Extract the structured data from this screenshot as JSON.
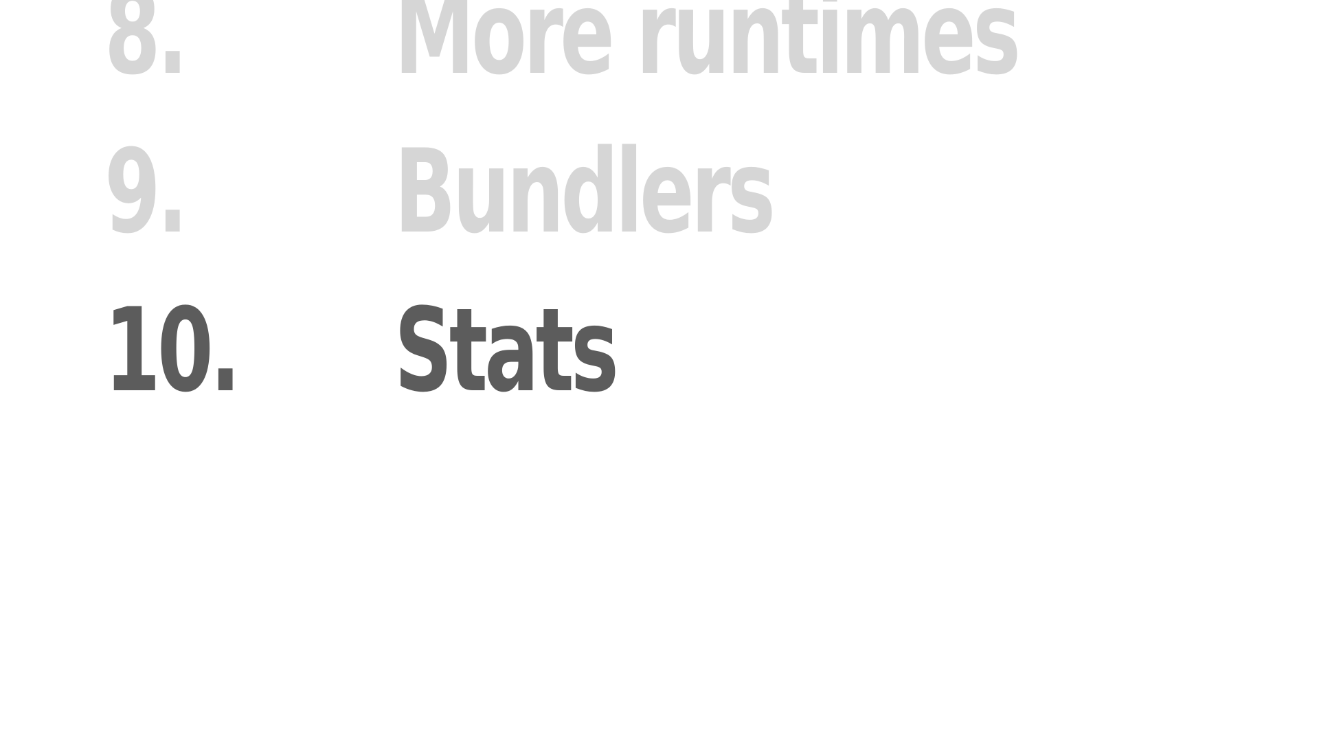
{
  "agenda": {
    "items": [
      {
        "number": "8.",
        "title": "More runtimes",
        "state": "inactive"
      },
      {
        "number": "9.",
        "title": "Bundlers",
        "state": "inactive"
      },
      {
        "number": "10.",
        "title": "Stats",
        "state": "active"
      }
    ]
  },
  "colors": {
    "inactive": "#d6d6d6",
    "active": "#5c5c5c",
    "background": "#ffffff"
  }
}
